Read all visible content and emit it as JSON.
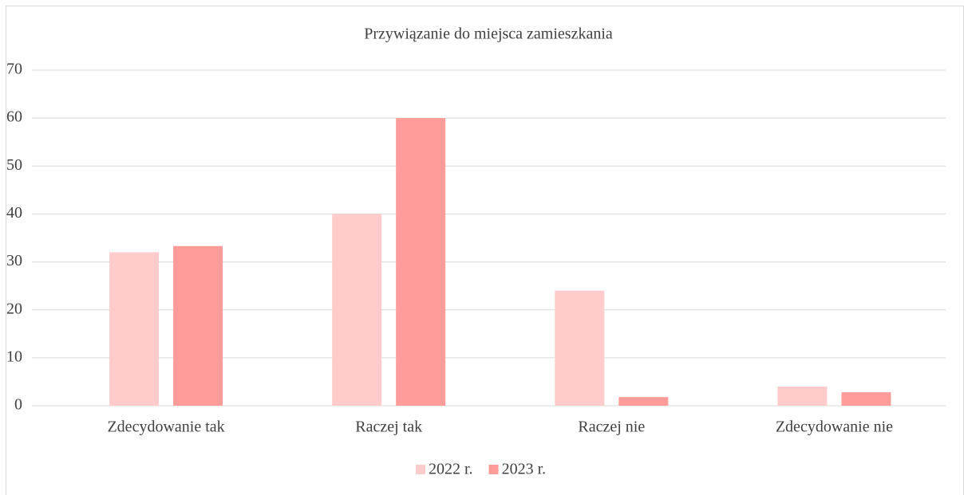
{
  "chart_data": {
    "type": "bar",
    "title": "Przywiązanie do miejsca zamieszkania",
    "categories": [
      "Zdecydowanie tak",
      "Raczej tak",
      "Raczej nie",
      "Zdecydowanie nie"
    ],
    "series": [
      {
        "name": "2022 r.",
        "color": "#ffcccb",
        "values": [
          32,
          40,
          24,
          4
        ]
      },
      {
        "name": "2023 r.",
        "color": "#ff9b99",
        "values": [
          33.3,
          60,
          1.8,
          2.8
        ]
      }
    ],
    "ylim": [
      0,
      70
    ],
    "yticks": [
      0,
      10,
      20,
      30,
      40,
      50,
      60,
      70
    ],
    "grid": true,
    "legend": "bottom"
  }
}
